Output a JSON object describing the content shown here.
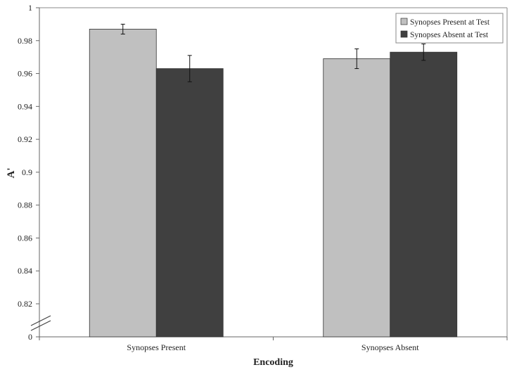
{
  "chart_data": {
    "type": "bar",
    "categories": [
      "Synopses Present",
      "Synopses Absent"
    ],
    "series": [
      {
        "name": "Synopses Present at Test",
        "values": [
          0.987,
          0.969
        ],
        "errors": [
          0.003,
          0.006
        ],
        "color": "#c0c0c0"
      },
      {
        "name": "Synopses Absent at Test",
        "values": [
          0.963,
          0.973
        ],
        "errors": [
          0.008,
          0.005
        ],
        "color": "#404040"
      }
    ],
    "xlabel": "Encoding",
    "ylabel": "A'",
    "ylim": [
      0.8,
      1
    ],
    "axis_break": true,
    "y_ticks": [
      "0",
      "0.82",
      "0.84",
      "0.86",
      "0.88",
      "0.9",
      "0.92",
      "0.94",
      "0.96",
      "0.98",
      "1"
    ],
    "legend_position": "top-right",
    "grid": false
  }
}
